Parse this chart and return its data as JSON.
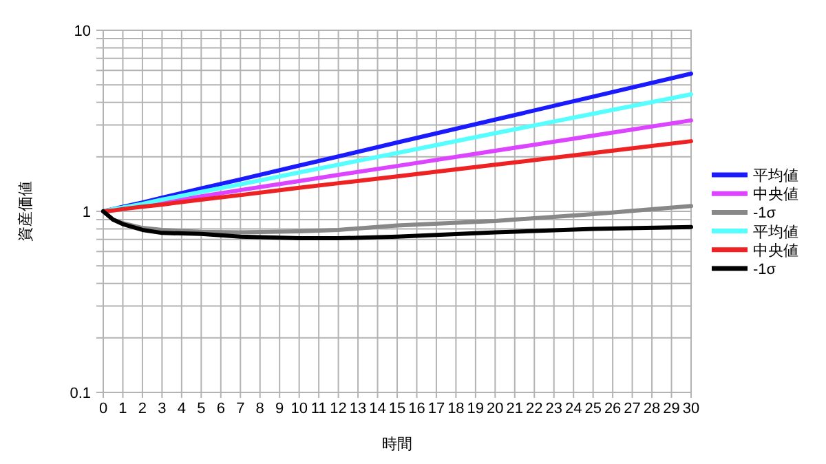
{
  "chart_data": {
    "type": "line",
    "xlabel": "時間",
    "ylabel": "資産価値",
    "log": "y",
    "grid": true,
    "legend": "right",
    "marker": "none",
    "line_style": "solid",
    "xlim": [
      0,
      30
    ],
    "xticks": [
      0,
      1,
      2,
      3,
      4,
      5,
      6,
      7,
      8,
      9,
      10,
      11,
      12,
      13,
      14,
      15,
      16,
      17,
      18,
      19,
      20,
      21,
      22,
      23,
      24,
      25,
      26,
      27,
      28,
      29,
      30
    ],
    "ylim": [
      0.1,
      10
    ],
    "yticks": [
      0.1,
      {
        "value": 0.2,
        "label": null
      },
      {
        "value": 0.3,
        "label": null
      },
      {
        "value": 0.4,
        "label": null
      },
      {
        "value": 0.5,
        "label": null
      },
      {
        "value": 0.6,
        "label": null
      },
      {
        "value": 0.7,
        "label": null
      },
      {
        "value": 0.8,
        "label": null
      },
      {
        "value": 0.9,
        "label": null
      },
      1,
      {
        "value": 2,
        "label": null
      },
      {
        "value": 3,
        "label": null
      },
      {
        "value": 4,
        "label": null
      },
      {
        "value": 5,
        "label": null
      },
      {
        "value": 6,
        "label": null
      },
      {
        "value": 7,
        "label": null
      },
      {
        "value": 8,
        "label": null
      },
      {
        "value": 9,
        "label": null
      },
      10
    ],
    "x": [
      0,
      0.5,
      1,
      2,
      3,
      5,
      7,
      10,
      12,
      15,
      20,
      25,
      30
    ],
    "series": [
      {
        "name": "平均値",
        "color": "#1a1aff",
        "values": [
          1,
          1.03,
          1.06,
          1.12,
          1.19,
          1.34,
          1.5,
          1.79,
          2.01,
          2.4,
          3.21,
          4.3,
          5.76
        ]
      },
      {
        "name": "中央値",
        "color": "#dd44ff",
        "values": [
          null,
          null,
          null,
          1.08,
          1.12,
          1.21,
          1.31,
          1.47,
          1.59,
          1.78,
          2.16,
          2.62,
          3.18
        ]
      },
      {
        "name": "-1σ",
        "color": "#888888",
        "values": [
          1,
          0.9,
          0.86,
          0.81,
          0.79,
          0.77,
          0.765,
          0.775,
          0.79,
          0.835,
          0.885,
          0.965,
          1.07
        ]
      },
      {
        "name": "平均値",
        "color": "#55ffff",
        "values": [
          1,
          1.03,
          1.05,
          1.1,
          1.16,
          1.28,
          1.41,
          1.64,
          1.81,
          2.1,
          2.7,
          3.46,
          4.43
        ]
      },
      {
        "name": "中央値",
        "color": "#ee2222",
        "values": [
          1,
          1.01,
          1.03,
          1.06,
          1.09,
          1.16,
          1.23,
          1.35,
          1.43,
          1.56,
          1.81,
          2.1,
          2.44
        ]
      },
      {
        "name": "-1σ",
        "color": "#000000",
        "values": [
          1,
          0.9,
          0.85,
          0.79,
          0.76,
          0.75,
          0.725,
          0.71,
          0.71,
          0.725,
          0.765,
          0.8,
          0.82
        ]
      }
    ]
  }
}
